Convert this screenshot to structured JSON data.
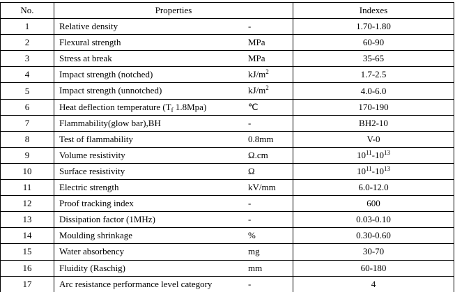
{
  "headers": {
    "no": "No.",
    "properties": "Properties",
    "indexes": "Indexes"
  },
  "rows": [
    {
      "no": "1",
      "property": [
        {
          "t": "Relative density"
        }
      ],
      "unit": [
        {
          "t": "-"
        }
      ],
      "index": [
        {
          "t": "1.70-1.80"
        }
      ]
    },
    {
      "no": "2",
      "property": [
        {
          "t": "Flexural strength"
        }
      ],
      "unit": [
        {
          "t": "MPa"
        }
      ],
      "index": [
        {
          "t": "60-90"
        }
      ]
    },
    {
      "no": "3",
      "property": [
        {
          "t": "Stress at break"
        }
      ],
      "unit": [
        {
          "t": "MPa"
        }
      ],
      "index": [
        {
          "t": "35-65"
        }
      ]
    },
    {
      "no": "4",
      "property": [
        {
          "t": "Impact strength (notched)"
        }
      ],
      "unit": [
        {
          "t": "kJ/m"
        },
        {
          "sup": "2"
        }
      ],
      "index": [
        {
          "t": "1.7-2.5"
        }
      ]
    },
    {
      "no": "5",
      "property": [
        {
          "t": "Impact strength (unnotched)"
        }
      ],
      "unit": [
        {
          "t": "kJ/m"
        },
        {
          "sup": "2"
        }
      ],
      "index": [
        {
          "t": "4.0-6.0"
        }
      ]
    },
    {
      "no": "6",
      "property": [
        {
          "t": "Heat deflection temperature (T"
        },
        {
          "sub": "f"
        },
        {
          "t": " 1.8Mpa)"
        }
      ],
      "unit": [
        {
          "t": "℃"
        }
      ],
      "index": [
        {
          "t": "170-190"
        }
      ]
    },
    {
      "no": "7",
      "property": [
        {
          "t": "Flammability(glow bar),BH"
        }
      ],
      "unit": [
        {
          "t": "-"
        }
      ],
      "index": [
        {
          "t": "BH2-10"
        }
      ]
    },
    {
      "no": "8",
      "property": [
        {
          "t": "Test of flammability"
        }
      ],
      "unit": [
        {
          "t": "0.8mm"
        }
      ],
      "index": [
        {
          "t": "V-0"
        }
      ]
    },
    {
      "no": "9",
      "property": [
        {
          "t": "Volume resistivity"
        }
      ],
      "unit": [
        {
          "t": "Ω.cm"
        }
      ],
      "index": [
        {
          "t": "10"
        },
        {
          "sup": "11"
        },
        {
          "t": "-10"
        },
        {
          "sup": "13"
        }
      ]
    },
    {
      "no": "10",
      "property": [
        {
          "t": "Surface resistivity"
        }
      ],
      "unit": [
        {
          "t": "Ω"
        }
      ],
      "index": [
        {
          "t": "10"
        },
        {
          "sup": "11"
        },
        {
          "t": "-10"
        },
        {
          "sup": "13"
        }
      ]
    },
    {
      "no": "11",
      "property": [
        {
          "t": "Electric strength"
        }
      ],
      "unit": [
        {
          "t": "kV/mm"
        }
      ],
      "index": [
        {
          "t": "6.0-12.0"
        }
      ]
    },
    {
      "no": "12",
      "property": [
        {
          "t": "Proof tracking index"
        }
      ],
      "unit": [
        {
          "t": "-"
        }
      ],
      "index": [
        {
          "t": "600"
        }
      ]
    },
    {
      "no": "13",
      "property": [
        {
          "t": "Dissipation factor (1MHz)"
        }
      ],
      "unit": [
        {
          "t": "-"
        }
      ],
      "index": [
        {
          "t": "0.03-0.10"
        }
      ]
    },
    {
      "no": "14",
      "property": [
        {
          "t": "Moulding shrinkage"
        }
      ],
      "unit": [
        {
          "t": "%"
        }
      ],
      "index": [
        {
          "t": "0.30-0.60"
        }
      ]
    },
    {
      "no": "15",
      "property": [
        {
          "t": "Water absorbency"
        }
      ],
      "unit": [
        {
          "t": "mg"
        }
      ],
      "index": [
        {
          "t": "30-70"
        }
      ]
    },
    {
      "no": "16",
      "property": [
        {
          "t": "Fluidity (Raschig)"
        }
      ],
      "unit": [
        {
          "t": "mm"
        }
      ],
      "index": [
        {
          "t": "60-180"
        }
      ]
    },
    {
      "no": "17",
      "property": [
        {
          "t": "Arc resistance performance level category"
        }
      ],
      "unit": [
        {
          "t": "-"
        }
      ],
      "index": [
        {
          "t": "4"
        }
      ]
    }
  ]
}
